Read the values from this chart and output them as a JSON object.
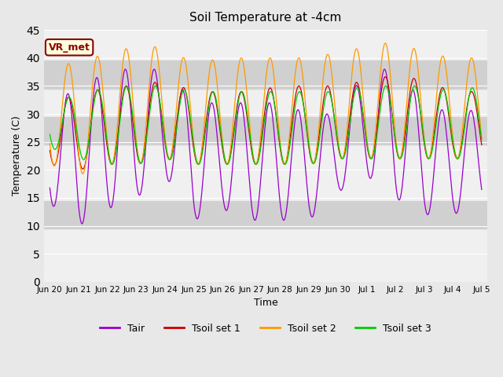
{
  "title": "Soil Temperature at -4cm",
  "xlabel": "Time",
  "ylabel": "Temperature (C)",
  "ylim": [
    0,
    45
  ],
  "yticks": [
    0,
    5,
    10,
    15,
    20,
    25,
    30,
    35,
    40,
    45
  ],
  "x_labels": [
    "Jun 20",
    "Jun 21",
    "Jun 22",
    "Jun 23",
    "Jun 24",
    "Jun 25",
    "Jun 26",
    "Jun 27",
    "Jun 28",
    "Jun 29",
    "Jun 30",
    "Jul 1",
    "Jul 2",
    "Jul 3",
    "Jul 4",
    "Jul 5"
  ],
  "n_days": 15,
  "colors": {
    "Tair": "#9900cc",
    "Tsoil1": "#cc0000",
    "Tsoil2": "#ff9900",
    "Tsoil3": "#00cc00"
  },
  "legend_label": "VR_met",
  "bg_color": "#e8e8e8",
  "plot_bg_color": "#f0f0f0",
  "stripe_color": "#d0d0d0",
  "stripe_ranges": [
    [
      9.5,
      14.5
    ],
    [
      24.5,
      29.5
    ],
    [
      34.5,
      39.5
    ]
  ]
}
